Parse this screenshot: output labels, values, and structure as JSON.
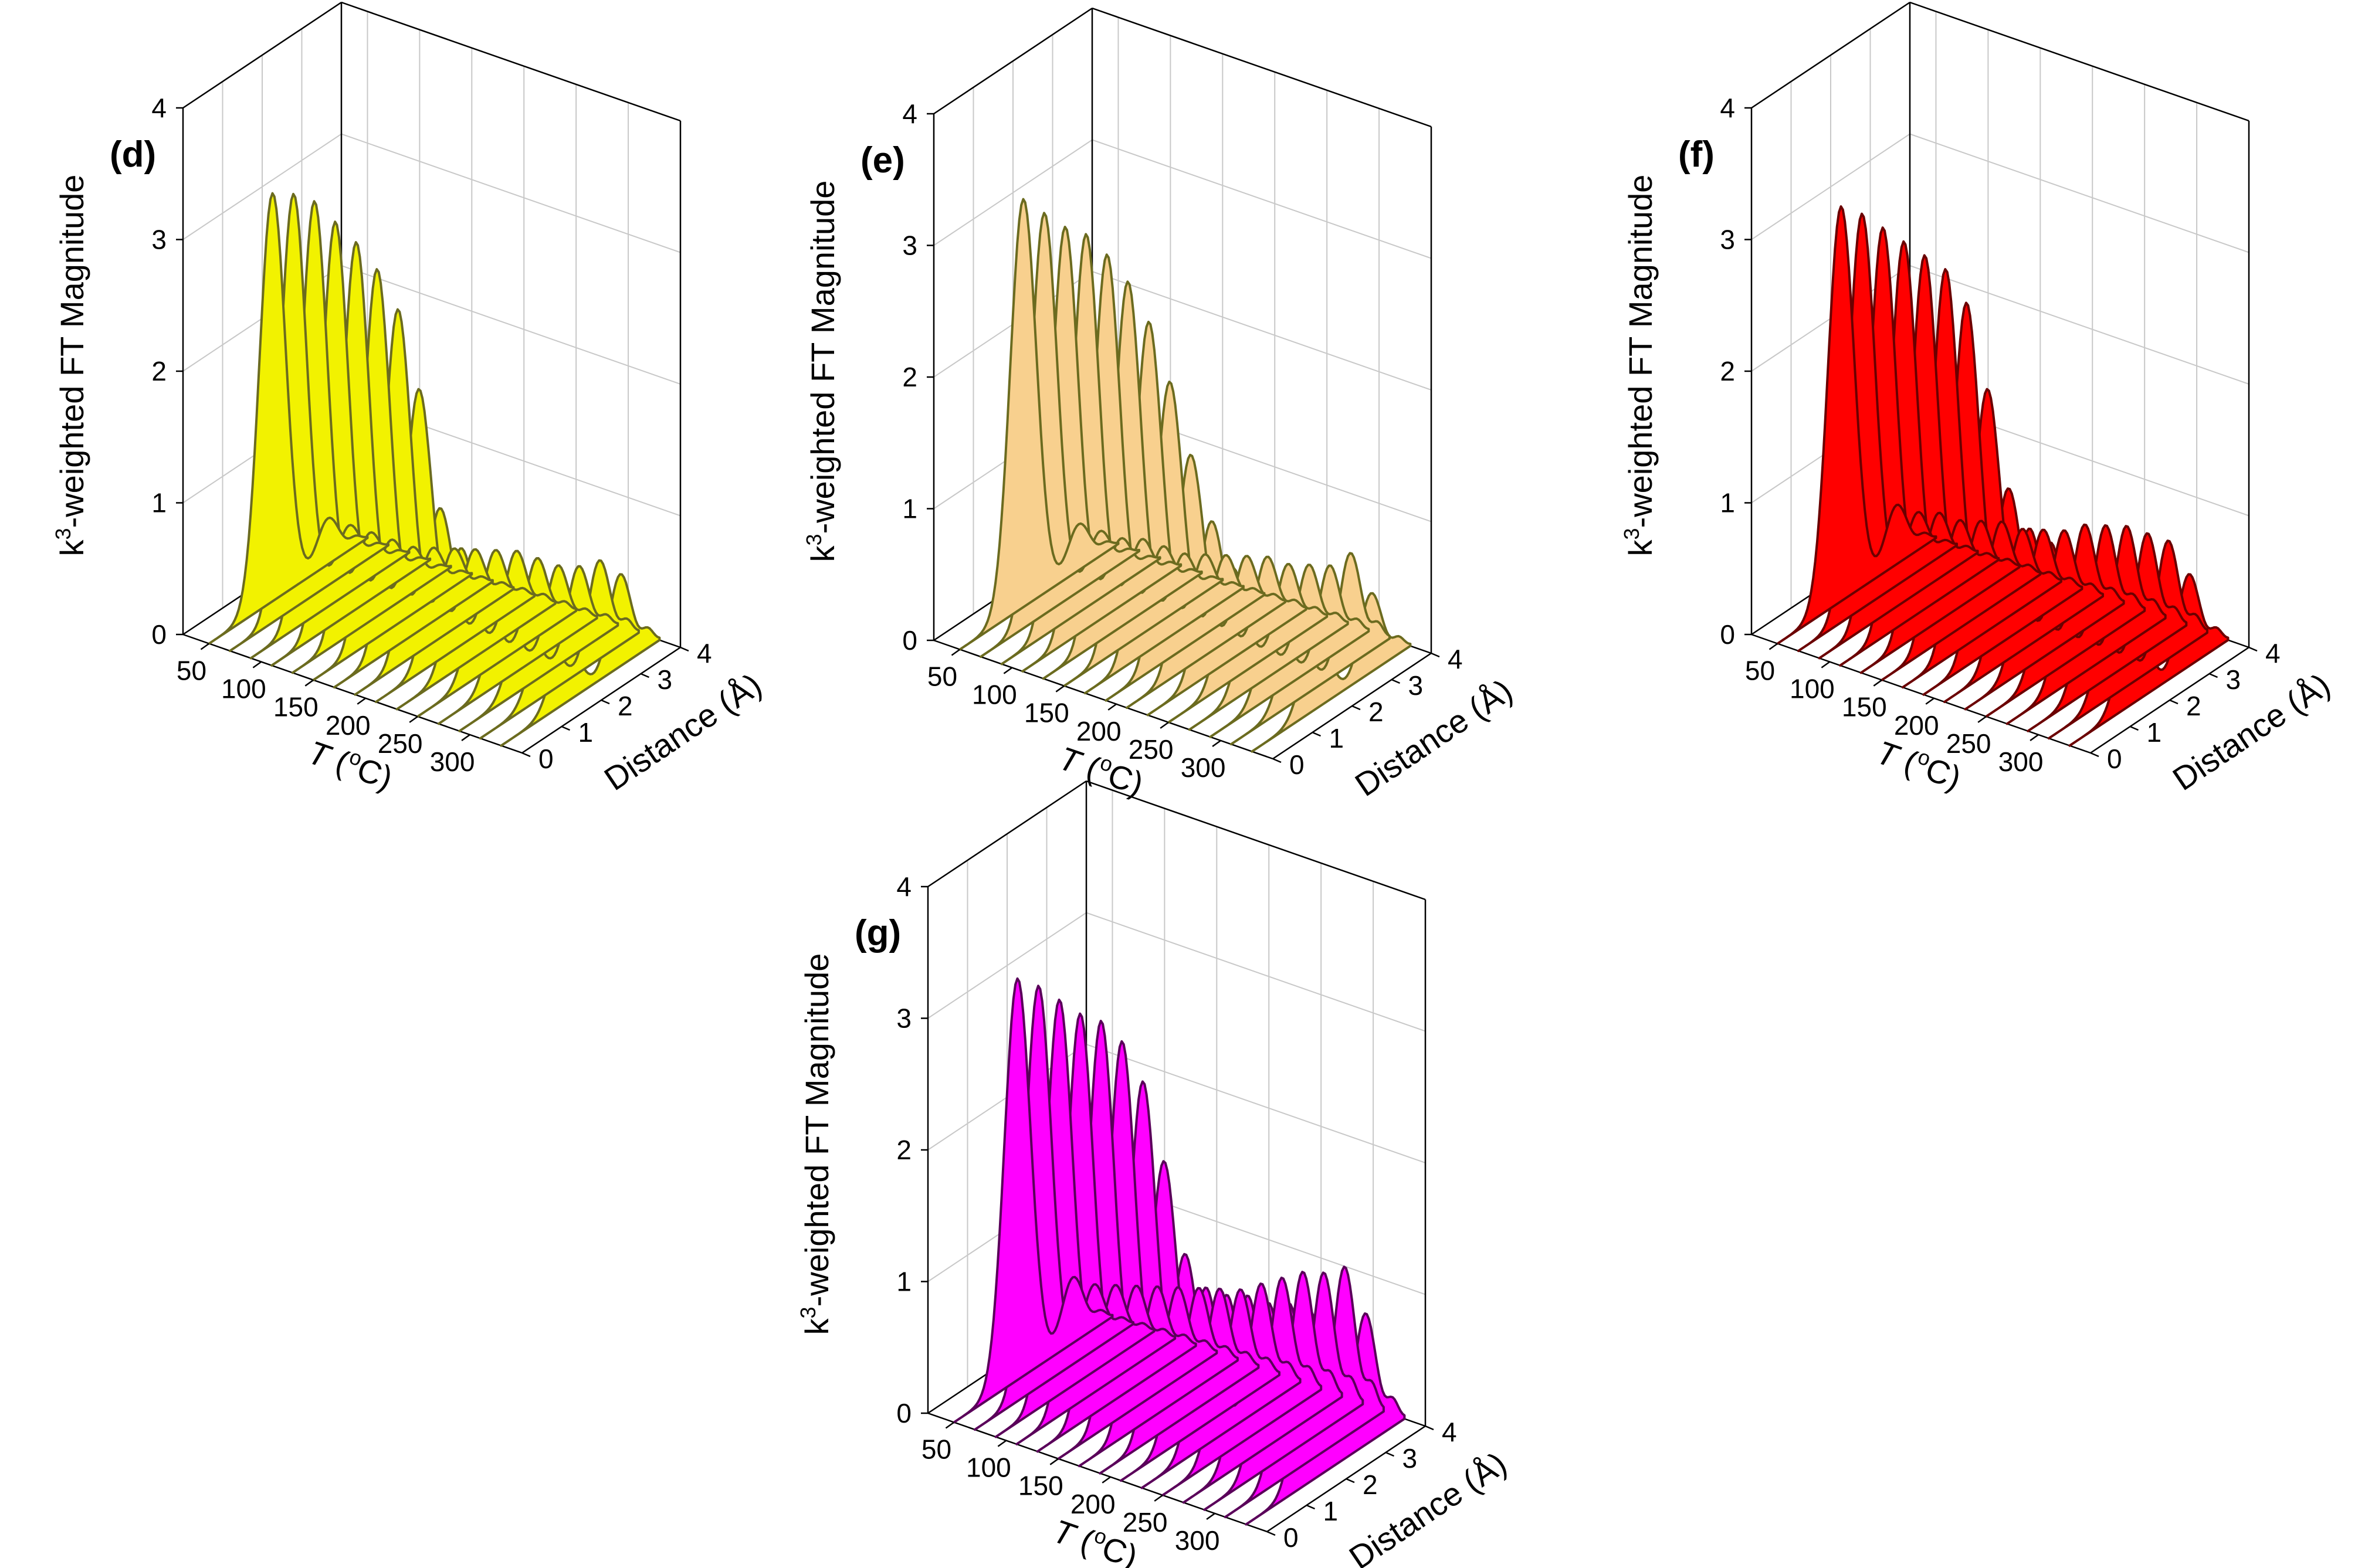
{
  "chart_data": [
    {
      "type": "3d-waterfall",
      "panel_label": "(d)",
      "zlabel": "k3-weighted FT Magnitude",
      "zlabel_main": "k",
      "zlabel_sup": "3",
      "zlabel_rest": "-weighted FT Magnitude",
      "xlabel_italic": "T",
      "xlabel_rest": " (",
      "xlabel_sup": "o",
      "xlabel_end": "C)",
      "ylabel": "Distance (Å)",
      "xlim": [
        25,
        350
      ],
      "ylim": [
        0,
        4
      ],
      "zlim": [
        0,
        4
      ],
      "x_ticks": [
        "50",
        "100",
        "150",
        "200",
        "250",
        "300"
      ],
      "y_ticks": [
        "0",
        "1",
        "2",
        "3",
        "4"
      ],
      "z_ticks": [
        "0",
        "1",
        "2",
        "3",
        "4"
      ],
      "fill_color": "#f2f200",
      "edge_color": "#6b6b1f",
      "temperatures": [
        50,
        70,
        90,
        110,
        130,
        150,
        170,
        190,
        210,
        230,
        250,
        270,
        290,
        310,
        330
      ],
      "main_peak_distance": 1.6,
      "main_peak_heights": [
        3.1,
        3.15,
        3.15,
        3.05,
        2.95,
        2.8,
        2.55,
        2.0,
        1.15,
        0.9,
        0.75,
        0.65,
        0.6,
        0.55,
        0.5
      ],
      "second_peak_distance": 3.0,
      "second_peak_heights": [
        0.35,
        0.35,
        0.35,
        0.35,
        0.35,
        0.4,
        0.45,
        0.5,
        0.55,
        0.6,
        0.6,
        0.6,
        0.65,
        0.75,
        0.7
      ]
    },
    {
      "type": "3d-waterfall",
      "panel_label": "(e)",
      "zlabel": "k3-weighted FT Magnitude",
      "zlabel_main": "k",
      "zlabel_sup": "3",
      "zlabel_rest": "-weighted FT Magnitude",
      "xlabel_italic": "T",
      "xlabel_rest": " (",
      "xlabel_sup": "o",
      "xlabel_end": "C)",
      "ylabel": "Distance (Å)",
      "xlim": [
        25,
        350
      ],
      "ylim": [
        0,
        4
      ],
      "zlim": [
        0,
        4
      ],
      "x_ticks": [
        "50",
        "100",
        "150",
        "200",
        "250",
        "300"
      ],
      "y_ticks": [
        "0",
        "1",
        "2",
        "3",
        "4"
      ],
      "z_ticks": [
        "0",
        "1",
        "2",
        "3",
        "4"
      ],
      "fill_color": "#f8d08e",
      "edge_color": "#6b6b1f",
      "temperatures": [
        50,
        70,
        90,
        110,
        130,
        150,
        170,
        190,
        210,
        230,
        250,
        270,
        290,
        310,
        330
      ],
      "main_peak_distance": 1.6,
      "main_peak_heights": [
        3.1,
        3.05,
        3.0,
        3.0,
        2.9,
        2.75,
        2.5,
        2.1,
        1.6,
        1.15,
        0.85,
        0.75,
        0.7,
        0.65,
        0.6
      ],
      "second_peak_distance": 3.0,
      "second_peak_heights": [
        0.35,
        0.35,
        0.35,
        0.4,
        0.4,
        0.4,
        0.45,
        0.5,
        0.55,
        0.6,
        0.6,
        0.65,
        0.7,
        0.85,
        0.6
      ]
    },
    {
      "type": "3d-waterfall",
      "panel_label": "(f)",
      "zlabel": "k3-weighted FT Magnitude",
      "zlabel_main": "k",
      "zlabel_sup": "3",
      "zlabel_rest": "-weighted FT Magnitude",
      "xlabel_italic": "T",
      "xlabel_rest": " (",
      "xlabel_sup": "o",
      "xlabel_end": "C)",
      "ylabel": "Distance (Å)",
      "xlim": [
        25,
        350
      ],
      "ylim": [
        0,
        4
      ],
      "zlim": [
        0,
        4
      ],
      "x_ticks": [
        "50",
        "100",
        "150",
        "200",
        "250",
        "300"
      ],
      "y_ticks": [
        "0",
        "1",
        "2",
        "3",
        "4"
      ],
      "z_ticks": [
        "0",
        "1",
        "2",
        "3",
        "4"
      ],
      "fill_color": "#ff0000",
      "edge_color": "#6b0000",
      "temperatures": [
        50,
        70,
        90,
        110,
        130,
        150,
        170,
        190,
        210,
        230,
        250,
        270,
        290,
        310,
        330
      ],
      "main_peak_distance": 1.6,
      "main_peak_heights": [
        3.0,
        3.0,
        2.95,
        2.9,
        2.85,
        2.8,
        2.6,
        2.0,
        1.3,
        1.05,
        1.0,
        0.95,
        0.9,
        0.85,
        0.8
      ],
      "second_peak_distance": 3.0,
      "second_peak_heights": [
        0.45,
        0.45,
        0.5,
        0.5,
        0.55,
        0.6,
        0.6,
        0.65,
        0.7,
        0.8,
        0.85,
        0.9,
        0.9,
        0.9,
        0.7
      ]
    },
    {
      "type": "3d-waterfall",
      "panel_label": "(g)",
      "zlabel": "k3-weighted FT Magnitude",
      "zlabel_main": "k",
      "zlabel_sup": "3",
      "zlabel_rest": "-weighted FT Magnitude",
      "xlabel_italic": "T",
      "xlabel_rest": " (",
      "xlabel_sup": "o",
      "xlabel_end": "C)",
      "ylabel": "Distance (Å)",
      "xlim": [
        25,
        350
      ],
      "ylim": [
        0,
        4
      ],
      "zlim": [
        0,
        4
      ],
      "x_ticks": [
        "50",
        "100",
        "150",
        "200",
        "250",
        "300"
      ],
      "y_ticks": [
        "0",
        "1",
        "2",
        "3",
        "4"
      ],
      "z_ticks": [
        "0",
        "1",
        "2",
        "3",
        "4"
      ],
      "fill_color": "#ff00ff",
      "edge_color": "#5a005a",
      "temperatures": [
        50,
        70,
        90,
        110,
        130,
        150,
        170,
        190,
        210,
        230,
        250,
        270,
        290,
        310,
        330
      ],
      "main_peak_distance": 1.6,
      "main_peak_heights": [
        3.05,
        3.05,
        3.0,
        2.95,
        2.95,
        2.85,
        2.6,
        2.05,
        1.4,
        1.2,
        1.2,
        1.25,
        1.25,
        1.3,
        1.3
      ],
      "second_peak_distance": 3.0,
      "second_peak_heights": [
        0.5,
        0.5,
        0.55,
        0.6,
        0.65,
        0.7,
        0.75,
        0.8,
        0.85,
        0.95,
        1.05,
        1.15,
        1.2,
        1.3,
        1.0
      ]
    }
  ]
}
